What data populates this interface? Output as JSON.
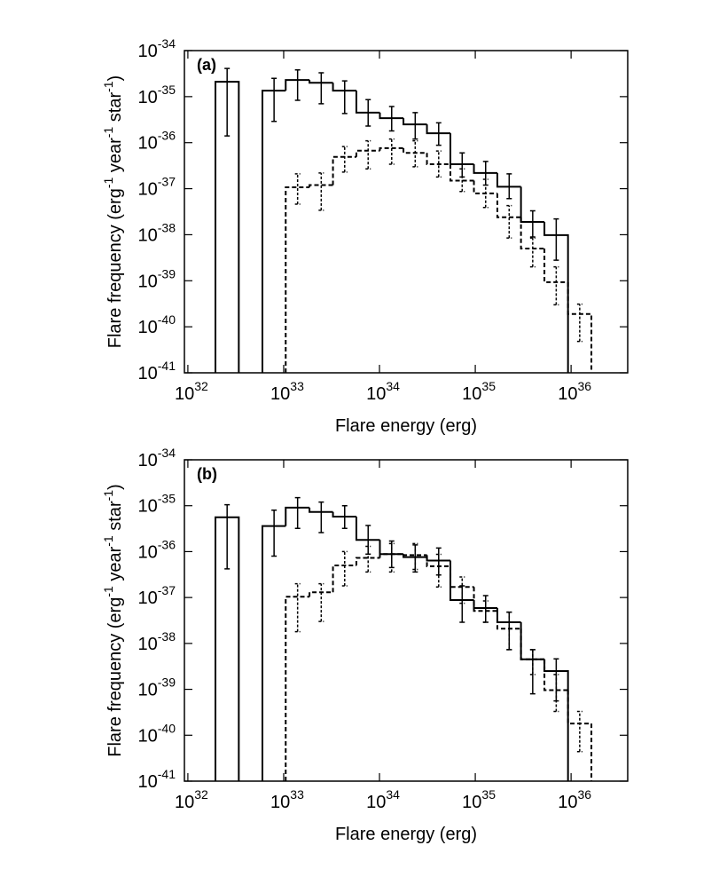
{
  "chart_data": [
    {
      "type": "histogram",
      "annotation": "(a)",
      "xlabel": "Flare energy (erg)",
      "ylabel": [
        "Flare frequency (erg",
        "-1",
        " year",
        "-1",
        " star",
        "-1",
        ")"
      ],
      "xscale": "log",
      "yscale": "log",
      "xlim": [
        9.2e+31,
        3.9e+36
      ],
      "ylim": [
        1e-41,
        1e-34
      ],
      "xticks": [
        {
          "value": 1e+32,
          "label": [
            "10",
            "32"
          ]
        },
        {
          "value": 1e+33,
          "label": [
            "10",
            "33"
          ]
        },
        {
          "value": 1e+34,
          "label": [
            "10",
            "34"
          ]
        },
        {
          "value": 1e+35,
          "label": [
            "10",
            "35"
          ]
        },
        {
          "value": 1e+36,
          "label": [
            "10",
            "36"
          ]
        }
      ],
      "yticks": [
        {
          "value": 1e-41,
          "label": [
            "10",
            "-41"
          ]
        },
        {
          "value": 1e-40,
          "label": [
            "10",
            "-40"
          ]
        },
        {
          "value": 1e-39,
          "label": [
            "10",
            "-39"
          ]
        },
        {
          "value": 1e-38,
          "label": [
            "10",
            "-38"
          ]
        },
        {
          "value": 1e-37,
          "label": [
            "10",
            "-37"
          ]
        },
        {
          "value": 1e-36,
          "label": [
            "10",
            "-36"
          ]
        },
        {
          "value": 1e-35,
          "label": [
            "10",
            "-35"
          ]
        },
        {
          "value": 1e-34,
          "label": [
            "10",
            "-34"
          ]
        }
      ],
      "bins": [
        1.94e+32,
        3.4e+32,
        6e+32,
        1.05e+33,
        1.86e+33,
        3.27e+33,
        5.74e+33,
        1.01e+34,
        1.78e+34,
        3.13e+34,
        5.5e+34,
        9.68e+34,
        1.7e+35,
        3e+35,
        5.27e+35,
        9.29e+35,
        1.63e+36
      ],
      "series": [
        {
          "color": "#000000",
          "linestyle": "solid",
          "values": [
            2.1e-35,
            null,
            1.35e-35,
            2.3e-35,
            2e-35,
            1.35e-35,
            4.5e-36,
            3.4e-36,
            2.5e-36,
            1.6e-36,
            3.4e-37,
            2.2e-37,
            1.1e-37,
            1.9e-38,
            9.8e-39,
            null
          ],
          "lower": [
            1.4e-36,
            null,
            2.9e-36,
            8.3e-36,
            7e-36,
            4.3e-36,
            2.3e-36,
            1.8e-36,
            1.2e-36,
            8.8e-37,
            1.8e-37,
            1.2e-37,
            6.1e-38,
            8.9e-39,
            2.8e-39,
            null
          ],
          "upper": [
            4.1e-35,
            null,
            2.5e-35,
            3.8e-35,
            3.3e-35,
            2.2e-35,
            8.6e-36,
            6.1e-36,
            4.5e-36,
            2.7e-36,
            6e-37,
            3.9e-37,
            2.1e-37,
            3.3e-38,
            2.2e-38,
            null
          ]
        },
        {
          "color": "#000000",
          "linestyle": "dashed",
          "values": [
            null,
            null,
            null,
            1.07e-37,
            1.2e-37,
            4.9e-37,
            6.7e-37,
            7.6e-37,
            6e-37,
            3.4e-37,
            1.5e-37,
            7.9e-38,
            2.4e-38,
            5e-39,
            9.3e-40,
            1.9e-40
          ],
          "lower": [
            null,
            null,
            null,
            4.6e-38,
            3.4e-38,
            2.3e-37,
            2.7e-37,
            3.4e-37,
            3e-37,
            1.8e-37,
            8.7e-38,
            3.9e-38,
            8.5e-39,
            2e-39,
            3e-40,
            4.8e-41
          ],
          "upper": [
            null,
            null,
            null,
            2.1e-37,
            2.2e-37,
            8.2e-37,
            1.1e-36,
            1.2e-36,
            1.1e-36,
            6.6e-37,
            2.7e-37,
            1.6e-37,
            4.3e-38,
            8.5e-39,
            2e-39,
            3.1e-40
          ]
        }
      ]
    },
    {
      "type": "histogram",
      "annotation": "(b)",
      "xlabel": "Flare energy (erg)",
      "ylabel": [
        "Flare frequency (erg",
        "-1",
        " year",
        "-1",
        " star",
        "-1",
        ")"
      ],
      "xscale": "log",
      "yscale": "log",
      "xlim": [
        9.2e+31,
        3.9e+36
      ],
      "ylim": [
        1e-41,
        1e-34
      ],
      "xticks": [
        {
          "value": 1e+32,
          "label": [
            "10",
            "32"
          ]
        },
        {
          "value": 1e+33,
          "label": [
            "10",
            "33"
          ]
        },
        {
          "value": 1e+34,
          "label": [
            "10",
            "34"
          ]
        },
        {
          "value": 1e+35,
          "label": [
            "10",
            "35"
          ]
        },
        {
          "value": 1e+36,
          "label": [
            "10",
            "36"
          ]
        }
      ],
      "yticks": [
        {
          "value": 1e-41,
          "label": [
            "10",
            "-41"
          ]
        },
        {
          "value": 1e-40,
          "label": [
            "10",
            "-40"
          ]
        },
        {
          "value": 1e-39,
          "label": [
            "10",
            "-39"
          ]
        },
        {
          "value": 1e-38,
          "label": [
            "10",
            "-38"
          ]
        },
        {
          "value": 1e-37,
          "label": [
            "10",
            "-37"
          ]
        },
        {
          "value": 1e-36,
          "label": [
            "10",
            "-36"
          ]
        },
        {
          "value": 1e-35,
          "label": [
            "10",
            "-35"
          ]
        },
        {
          "value": 1e-34,
          "label": [
            "10",
            "-34"
          ]
        }
      ],
      "bins": [
        1.94e+32,
        3.4e+32,
        6e+32,
        1.05e+33,
        1.86e+33,
        3.27e+33,
        5.74e+33,
        1.01e+34,
        1.78e+34,
        3.13e+34,
        5.5e+34,
        9.68e+34,
        1.7e+35,
        3e+35,
        5.27e+35,
        9.29e+35,
        1.63e+36
      ],
      "series": [
        {
          "color": "#000000",
          "linestyle": "solid",
          "values": [
            5.6e-36,
            null,
            3.6e-36,
            9.1e-36,
            7.3e-36,
            5.8e-36,
            1.8e-36,
            8.8e-37,
            7.6e-37,
            6.4e-37,
            8.8e-38,
            5.9e-38,
            2.9e-38,
            4.5e-39,
            2.5e-39,
            null
          ],
          "lower": [
            4.2e-37,
            null,
            8e-37,
            3.2e-36,
            2.6e-36,
            3.2e-36,
            8.8e-37,
            4.5e-37,
            3.6e-37,
            3.1e-37,
            2.9e-38,
            2.9e-38,
            7.3e-39,
            8e-40,
            5.6e-40,
            null
          ],
          "upper": [
            1.05e-35,
            null,
            8e-36,
            1.5e-35,
            1.2e-35,
            1e-35,
            3.7e-36,
            1.7e-36,
            1.4e-36,
            1.2e-36,
            1.8e-37,
            1.1e-37,
            4.8e-38,
            7.3e-39,
            4.6e-39,
            null
          ]
        },
        {
          "color": "#000000",
          "linestyle": "dashed",
          "values": [
            null,
            null,
            null,
            1.04e-37,
            1.3e-37,
            5e-37,
            7.3e-37,
            8.8e-37,
            8.4e-37,
            4.8e-37,
            1.7e-37,
            5.1e-38,
            2.1e-38,
            4.5e-39,
            9.6e-40,
            1.8e-40
          ],
          "lower": [
            null,
            null,
            null,
            1.8e-38,
            3e-38,
            1.8e-37,
            3.6e-37,
            3.6e-37,
            4.1e-37,
            1.7e-37,
            7.5e-38,
            2.9e-38,
            7.3e-39,
            2.1e-39,
            3.3e-40,
            4.4e-41
          ],
          "upper": [
            null,
            null,
            null,
            2e-37,
            2e-37,
            1e-36,
            1.3e-36,
            1.5e-36,
            1.5e-36,
            8.7e-37,
            2.8e-37,
            8.4e-38,
            4.8e-38,
            7.3e-39,
            2.1e-39,
            3.3e-40
          ]
        }
      ]
    }
  ]
}
